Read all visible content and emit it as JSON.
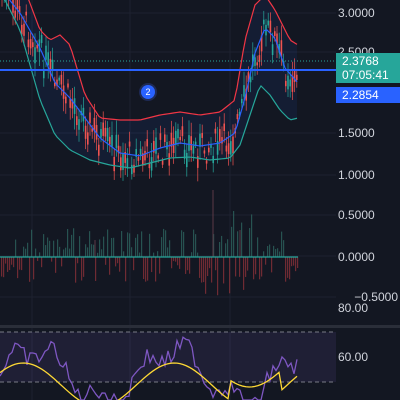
{
  "price_axis": {
    "labels": [
      "3.0000",
      "2.5000",
      "1.5000",
      "1.0000",
      "0.5000",
      "0.0000",
      "−0.5000"
    ]
  },
  "last_price": {
    "value": "2.3768",
    "countdown": "07:05:41",
    "color": "#26a69a"
  },
  "line_price": {
    "value": "2.2854",
    "color": "#2962ff"
  },
  "indicator_axis": {
    "labels": [
      "80.00",
      "60.00"
    ]
  },
  "marker": {
    "label": "2"
  },
  "colors": {
    "background": "#131722",
    "up": "#26a69a",
    "down": "#ef5350",
    "band_upper": "#f23645",
    "band_lower": "#26a69a",
    "basis": "#2962ff",
    "rsi": "#7e57c2",
    "rsi_ma": "#fdd835"
  },
  "icons": {
    "marker": "event-marker-icon"
  }
}
